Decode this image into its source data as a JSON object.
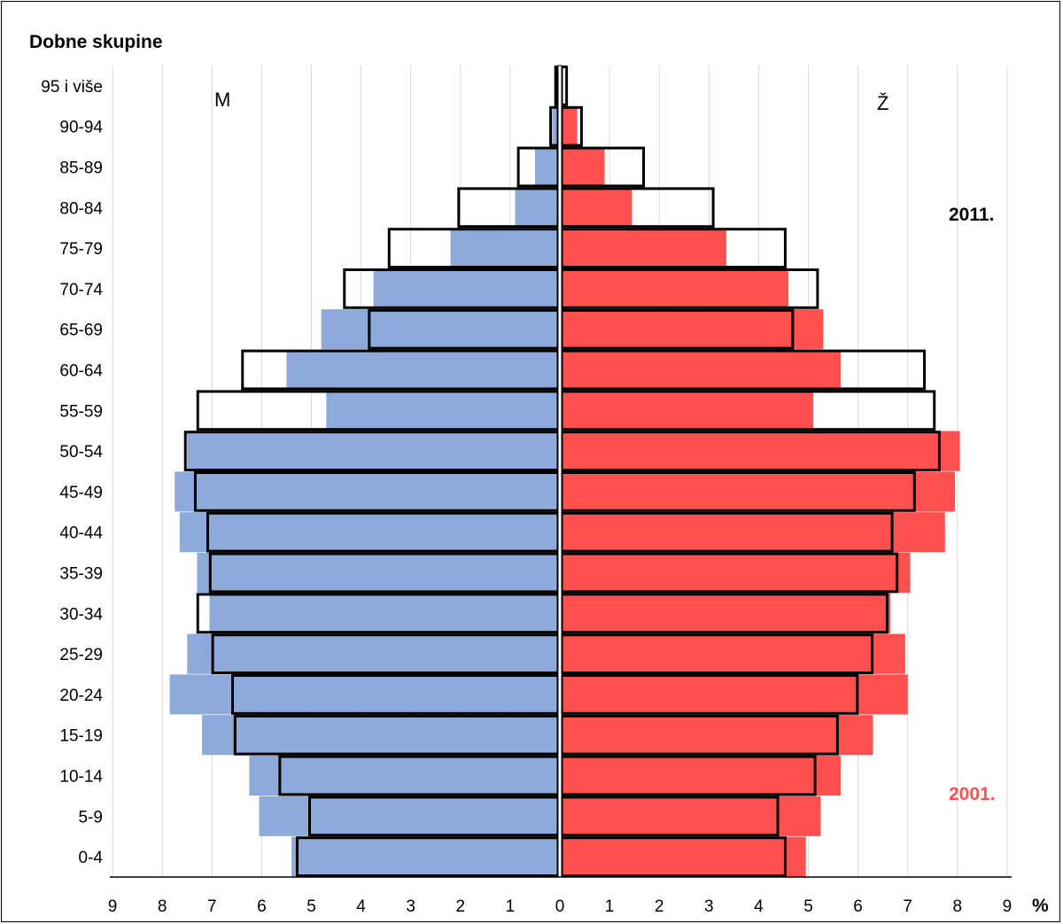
{
  "chart_data": {
    "type": "bar",
    "title": "Dobne skupine",
    "xlabel": "%",
    "side_labels": {
      "male": "M",
      "female": "Ž"
    },
    "year_labels": {
      "y2011": "2011.",
      "y2001": "2001."
    },
    "xlim": [
      -9,
      9
    ],
    "x_ticks": [
      "9",
      "8",
      "7",
      "6",
      "5",
      "4",
      "3",
      "2",
      "1",
      "0",
      "1",
      "2",
      "3",
      "4",
      "5",
      "6",
      "7",
      "8",
      "9"
    ],
    "grid": true,
    "categories": [
      "95 i više",
      "90-94",
      "85-89",
      "80-84",
      "75-79",
      "70-74",
      "65-69",
      "60-64",
      "55-59",
      "50-54",
      "45-49",
      "40-44",
      "35-39",
      "30-34",
      "25-29",
      "20-24",
      "15-19",
      "10-14",
      "5-9",
      "0-4"
    ],
    "series": [
      {
        "name": "2001.",
        "sex": "M",
        "style": "fill",
        "values": [
          0.05,
          0.15,
          0.5,
          0.9,
          2.2,
          3.75,
          4.8,
          5.5,
          4.7,
          7.5,
          7.75,
          7.65,
          7.3,
          7.05,
          7.5,
          7.85,
          7.2,
          6.25,
          6.05,
          5.4
        ]
      },
      {
        "name": "2001.",
        "sex": "Ž",
        "style": "fill",
        "values": [
          0.05,
          0.35,
          0.9,
          1.45,
          3.35,
          4.6,
          5.3,
          5.65,
          5.1,
          8.05,
          7.95,
          7.75,
          7.05,
          6.65,
          6.95,
          7.0,
          6.3,
          5.65,
          5.25,
          4.95
        ]
      },
      {
        "name": "2011.",
        "sex": "M",
        "style": "outline",
        "values": [
          0.05,
          0.15,
          0.8,
          2.0,
          3.4,
          4.3,
          3.8,
          6.35,
          7.25,
          7.5,
          7.3,
          7.05,
          7.0,
          7.25,
          6.95,
          6.55,
          6.5,
          5.6,
          5.0,
          5.25
        ]
      },
      {
        "name": "2011.",
        "sex": "Ž",
        "style": "outline",
        "values": [
          0.1,
          0.4,
          1.65,
          3.05,
          4.5,
          5.15,
          4.65,
          7.3,
          7.5,
          7.6,
          7.1,
          6.65,
          6.75,
          6.55,
          6.25,
          5.95,
          5.55,
          5.1,
          4.35,
          4.5
        ]
      }
    ],
    "colors": {
      "male_2001": "#8eaadb",
      "female_2001": "#ff5050",
      "outline": "#000000",
      "grid": "#d9d9d9",
      "year_2001": "#ff5050"
    }
  }
}
